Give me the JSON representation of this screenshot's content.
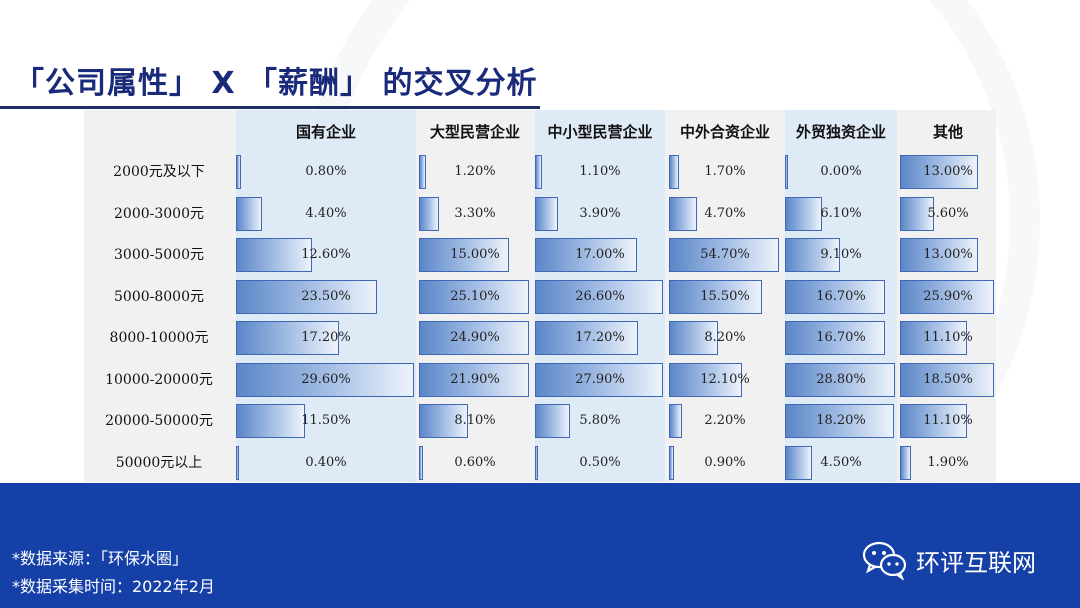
{
  "header": {
    "title": "「公司属性」 X 「薪酬」 的交叉分析"
  },
  "footer": {
    "source_line": "*数据来源：「环保水圈」",
    "time_line": "*数据采集时间：2022年2月",
    "brand": "环评互联网"
  },
  "colors": {
    "title": "#1a2a7a",
    "footer_bg": "#1540a8",
    "bar_border": "#3f68b5",
    "bar_fill": "#5b86c8",
    "column_band": "#dfeaf7",
    "table_bg": "#f1f1f2"
  },
  "icons": [
    "wechat-icon"
  ],
  "chart_data": {
    "type": "table",
    "columns": [
      "国有企业",
      "大型民营企业",
      "中小型民营企业",
      "中外合资企业",
      "外贸独资企业",
      "其他"
    ],
    "rows": [
      "2000元及以下",
      "2000-3000元",
      "3000-5000元",
      "5000-8000元",
      "8000-10000元",
      "10000-20000元",
      "20000-50000元",
      "50000元以上"
    ],
    "values": [
      [
        0.8,
        1.2,
        1.1,
        1.7,
        0.0,
        13.0
      ],
      [
        4.4,
        3.3,
        3.9,
        4.7,
        6.1,
        5.6
      ],
      [
        12.6,
        15.0,
        17.0,
        54.7,
        9.1,
        13.0
      ],
      [
        23.5,
        25.1,
        26.6,
        15.5,
        16.7,
        25.9
      ],
      [
        17.2,
        24.9,
        17.2,
        8.2,
        16.7,
        11.1
      ],
      [
        29.6,
        21.9,
        27.9,
        12.1,
        28.8,
        18.5
      ],
      [
        11.5,
        8.1,
        5.8,
        2.2,
        18.2,
        11.1
      ],
      [
        0.4,
        0.6,
        0.5,
        0.9,
        4.5,
        1.9
      ]
    ],
    "labels": [
      [
        "0.80%",
        "1.20%",
        "1.10%",
        "1.70%",
        "0.00%",
        "13.00%"
      ],
      [
        "4.40%",
        "3.30%",
        "3.90%",
        "4.70%",
        "6.10%",
        "5.60%"
      ],
      [
        "12.60%",
        "15.00%",
        "17.00%",
        "54.70%",
        "9.10%",
        "13.00%"
      ],
      [
        "23.50%",
        "25.10%",
        "26.60%",
        "15.50%",
        "16.70%",
        "25.90%"
      ],
      [
        "17.20%",
        "24.90%",
        "17.20%",
        "8.20%",
        "16.70%",
        "11.10%"
      ],
      [
        "29.60%",
        "21.90%",
        "27.90%",
        "12.10%",
        "28.80%",
        "18.50%"
      ],
      [
        "11.50%",
        "8.10%",
        "5.80%",
        "2.20%",
        "18.20%",
        "11.10%"
      ],
      [
        "0.40%",
        "0.60%",
        "0.50%",
        "0.90%",
        "4.50%",
        "1.90%"
      ]
    ],
    "unit": "%"
  }
}
